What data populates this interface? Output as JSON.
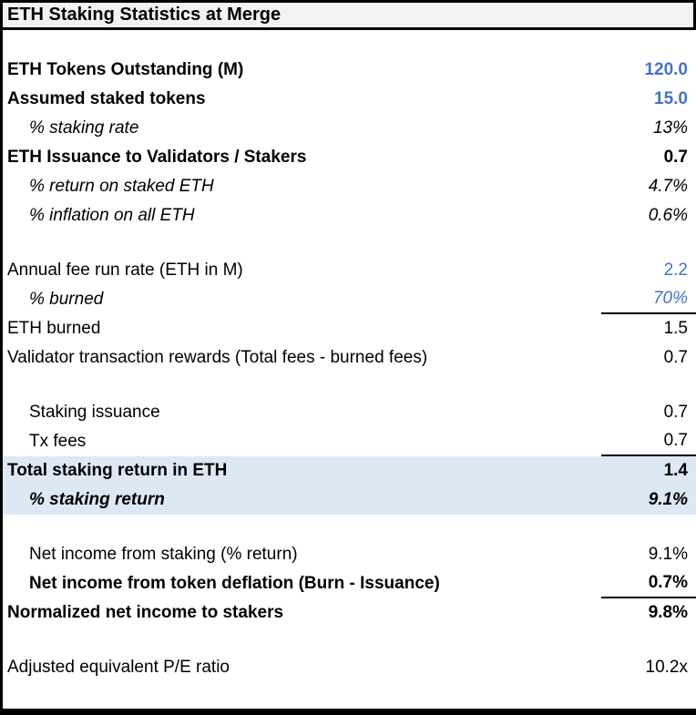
{
  "title": "ETH Staking Statistics at Merge",
  "colors": {
    "blue": "#4472C4",
    "highlight": "#DCE9F5",
    "title_bg": "#F2F2F2",
    "border": "#000000"
  },
  "rows": [
    {
      "blank": true
    },
    {
      "label": "ETH Tokens Outstanding (M)",
      "value": "120.0",
      "bold": true,
      "vBold": true,
      "blue": true
    },
    {
      "label": "Assumed staked tokens",
      "value": "15.0",
      "bold": true,
      "vBold": true,
      "blue": true
    },
    {
      "label": "% staking rate",
      "value": "13%",
      "indent": true,
      "italic": true,
      "vItalic": true
    },
    {
      "label": "ETH Issuance to Validators / Stakers",
      "value": "0.7",
      "bold": true,
      "vBold": true
    },
    {
      "label": "% return on staked ETH",
      "value": "4.7%",
      "indent": true,
      "italic": true,
      "vItalic": true
    },
    {
      "label": "% inflation on all ETH",
      "value": "0.6%",
      "indent": true,
      "italic": true,
      "vItalic": true
    },
    {
      "blank": true
    },
    {
      "label": "Annual fee run rate (ETH in M)",
      "value": "2.2",
      "blue": true
    },
    {
      "label": "% burned",
      "value": "70%",
      "indent": true,
      "italic": true,
      "vItalic": true,
      "blue": true,
      "rule": true
    },
    {
      "label": "ETH burned",
      "value": "1.5"
    },
    {
      "label": "Validator transaction rewards (Total fees - burned fees)",
      "value": "0.7"
    },
    {
      "blank": true
    },
    {
      "label": "Staking issuance",
      "value": "0.7",
      "indent": true
    },
    {
      "label": "Tx fees",
      "value": "0.7",
      "indent": true,
      "rule": true
    },
    {
      "label": "Total staking return in ETH",
      "value": "1.4",
      "bold": true,
      "vBold": true,
      "highlight": true
    },
    {
      "label": "% staking return",
      "value": "9.1%",
      "indent": true,
      "bold": true,
      "italic": true,
      "vBold": true,
      "vItalic": true,
      "highlight": true
    },
    {
      "blank": true
    },
    {
      "label": "Net income from staking (% return)",
      "value": "9.1%",
      "indent": true
    },
    {
      "label": "Net income from token deflation (Burn - Issuance)",
      "value": "0.7%",
      "indent": true,
      "bold": true,
      "vBold": true,
      "rule": true
    },
    {
      "label": "Normalized net income to stakers",
      "value": "9.8%",
      "bold": true,
      "vBold": true
    },
    {
      "blank": true
    },
    {
      "label": "Adjusted equivalent P/E ratio",
      "value": "10.2x"
    }
  ]
}
